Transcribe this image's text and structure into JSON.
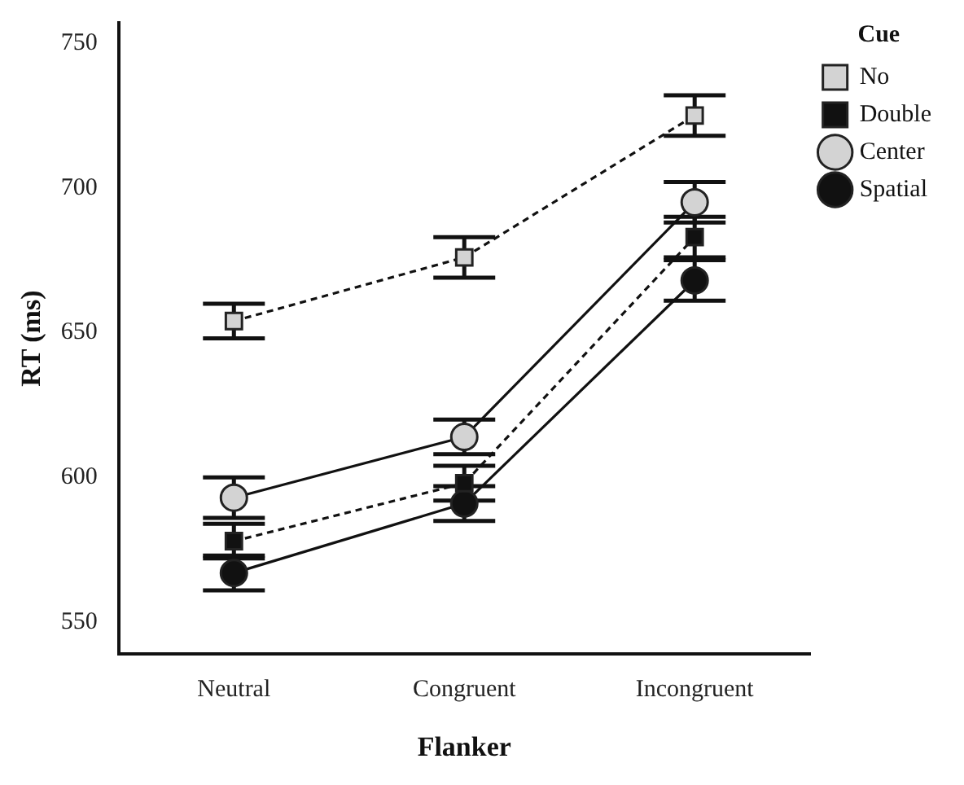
{
  "chart_data": {
    "type": "line",
    "xlabel": "Flanker",
    "ylabel": "RT (ms)",
    "legend_title": "Cue",
    "legend": "right",
    "grid": false,
    "categories": [
      "Neutral",
      "Congruent",
      "Incongruent"
    ],
    "ylim": [
      539,
      757
    ],
    "yticks": [
      550,
      600,
      650,
      700,
      750
    ],
    "series": [
      {
        "name": "No",
        "color": "#d3d3d3",
        "marker": "square",
        "line_style": "dashed",
        "values": [
          654,
          676,
          725
        ],
        "errors": [
          6,
          7,
          7
        ]
      },
      {
        "name": "Double",
        "color": "#111111",
        "marker": "square",
        "line_style": "dashed",
        "values": [
          578,
          598,
          683
        ],
        "errors": [
          6,
          6,
          7
        ]
      },
      {
        "name": "Center",
        "color": "#d3d3d3",
        "marker": "circle",
        "line_style": "solid",
        "values": [
          593,
          614,
          695
        ],
        "errors": [
          7,
          6,
          7
        ]
      },
      {
        "name": "Spatial",
        "color": "#111111",
        "marker": "circle",
        "line_style": "solid",
        "values": [
          567,
          591,
          668
        ],
        "errors": [
          6,
          6,
          7
        ]
      }
    ]
  }
}
